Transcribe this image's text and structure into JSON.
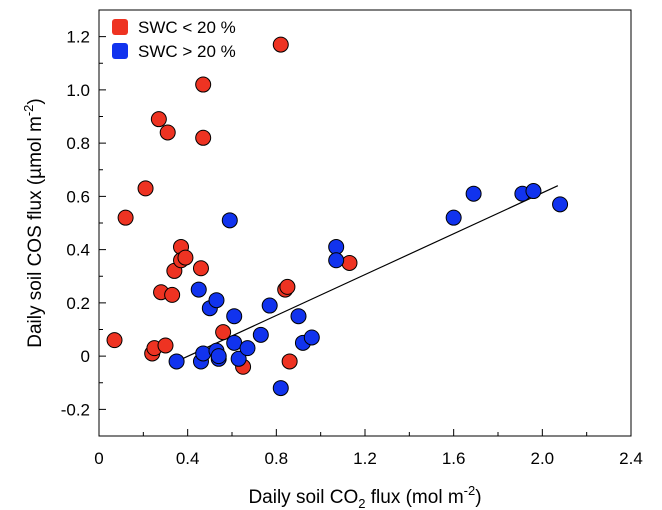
{
  "chart_data": {
    "type": "scatter",
    "title": "",
    "xlabel": {
      "before": "Daily soil CO",
      "sub": "2",
      "after": " flux (mol m",
      "sup": "-2",
      "close": ")"
    },
    "ylabel": {
      "before": "Daily soil COS flux (µmol m",
      "sup": "-2",
      "close": ")"
    },
    "xlim": [
      0,
      2.4
    ],
    "ylim": [
      -0.3,
      1.3
    ],
    "x_ticks": [
      0,
      0.4,
      0.8,
      1.2,
      1.6,
      2.0,
      2.4
    ],
    "x_tick_labels": [
      "0",
      "0.4",
      "0.8",
      "1.2",
      "1.6",
      "2.0",
      "2.4"
    ],
    "y_ticks": [
      -0.2,
      0,
      0.2,
      0.4,
      0.6,
      0.8,
      1.0,
      1.2
    ],
    "y_tick_labels": [
      "-0.2",
      "0",
      "0.2",
      "0.4",
      "0.6",
      "0.8",
      "1.0",
      "1.2"
    ],
    "grid": false,
    "legend_position": "top-left",
    "series": [
      {
        "name": "SWC < 20 %",
        "color": "#ee3322",
        "x": [
          0.07,
          0.12,
          0.21,
          0.24,
          0.25,
          0.27,
          0.28,
          0.3,
          0.31,
          0.33,
          0.34,
          0.37,
          0.37,
          0.39,
          0.46,
          0.47,
          0.47,
          0.56,
          0.65,
          0.82,
          0.84,
          0.85,
          0.86,
          1.13
        ],
        "y": [
          0.06,
          0.52,
          0.63,
          0.01,
          0.03,
          0.89,
          0.24,
          0.04,
          0.84,
          0.23,
          0.32,
          0.41,
          0.36,
          0.37,
          0.33,
          1.02,
          0.82,
          0.09,
          -0.04,
          1.17,
          0.25,
          0.26,
          -0.02,
          0.35
        ]
      },
      {
        "name": "SWC > 20 %",
        "color": "#1133ee",
        "x": [
          0.35,
          0.45,
          0.46,
          0.47,
          0.5,
          0.53,
          0.53,
          0.54,
          0.54,
          0.59,
          0.61,
          0.61,
          0.63,
          0.67,
          0.73,
          0.77,
          0.82,
          0.9,
          0.92,
          0.96,
          1.07,
          1.07,
          1.6,
          1.69,
          1.91,
          1.96,
          2.08
        ],
        "y": [
          -0.02,
          0.25,
          -0.02,
          0.01,
          0.18,
          0.21,
          0.02,
          -0.01,
          0.0,
          0.51,
          0.15,
          0.05,
          -0.01,
          0.03,
          0.08,
          0.19,
          -0.12,
          0.15,
          0.05,
          0.07,
          0.41,
          0.36,
          0.52,
          0.61,
          0.61,
          0.62,
          0.57
        ]
      }
    ],
    "fit_line": {
      "x": [
        0.35,
        2.07
      ],
      "y": [
        -0.02,
        0.64
      ],
      "color": "#000000"
    }
  }
}
